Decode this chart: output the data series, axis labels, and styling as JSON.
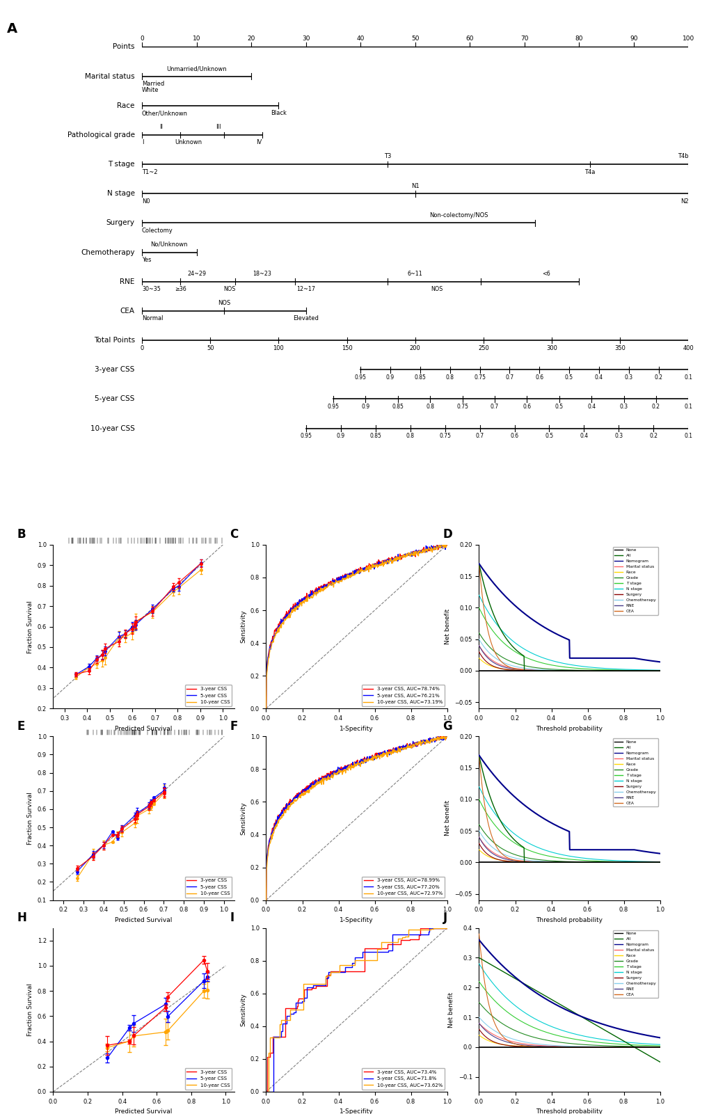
{
  "row_labels": [
    "Points",
    "Marital status",
    "Race",
    "Pathological grade",
    "T stage",
    "N stage",
    "Surgery",
    "Chemotherapy",
    "RNE",
    "CEA",
    "Total Points",
    "3-year CSS",
    "5-year CSS",
    "10-year CSS"
  ],
  "css_vals_str": [
    "0.95",
    "0.9",
    "0.85",
    "0.8",
    "0.75",
    "0.7",
    "0.6",
    "0.5",
    "0.4",
    "0.3",
    "0.2",
    "0.1"
  ],
  "tp_vals": [
    0,
    50,
    100,
    150,
    200,
    250,
    300,
    350,
    400
  ],
  "auc_C": [
    "78.74%",
    "76.21%",
    "73.19%"
  ],
  "auc_F": [
    "78.99%",
    "77.20%",
    "72.97%"
  ],
  "auc_I": [
    "73.4%",
    "71.8%",
    "73.62%"
  ],
  "legend_labels_DCA": [
    "None",
    "All",
    "Nomogram",
    "Marital status",
    "Race",
    "Grade",
    "T stage",
    "N stage",
    "Surgery",
    "Chemotherapy",
    "RNE",
    "CEA"
  ],
  "legend_colors_DCA": [
    "#000000",
    "#006400",
    "#00008B",
    "#FF6666",
    "#FFD700",
    "#228B22",
    "#32CD32",
    "#00CED1",
    "#8B0000",
    "#87CEEB",
    "#483D8B",
    "#D2691E"
  ],
  "calib_xlabel": "Predicted Survival",
  "calib_ylabel": "Fraction Survival",
  "roc_xlabel": "1-Specifity",
  "roc_ylabel": "Sensitivity",
  "dca_xlabel": "Threshold probability",
  "dca_ylabel": "Net benefit"
}
